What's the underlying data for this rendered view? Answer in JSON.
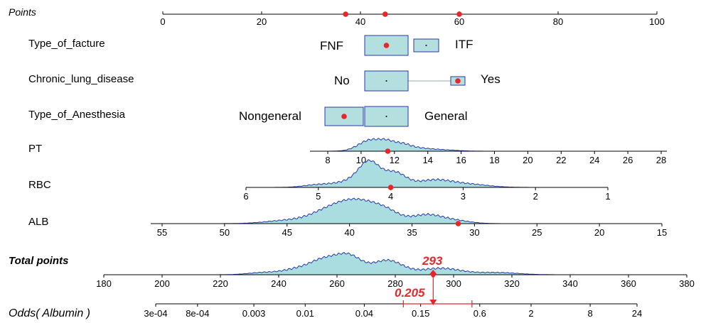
{
  "chart_data": {
    "type": "nomogram",
    "points_axis": {
      "label": "Points",
      "ticks": [
        0,
        20,
        40,
        60,
        80,
        100
      ],
      "selected": [
        37,
        45,
        60
      ]
    },
    "categorical": [
      {
        "name": "Type_of_facture",
        "levels": [
          {
            "label": "FNF",
            "points": 45
          },
          {
            "label": "ITF",
            "points": 53
          }
        ],
        "selected": "FNF",
        "selected_points": 45
      },
      {
        "name": "Chronic_lung_disease",
        "levels": [
          {
            "label": "No",
            "points": 45
          },
          {
            "label": "Yes",
            "points": 60
          }
        ],
        "selected": "Yes",
        "selected_points": 60
      },
      {
        "name": "Type_of_Anesthesia",
        "levels": [
          {
            "label": "Nongeneral",
            "points": 37
          },
          {
            "label": "General",
            "points": 45
          }
        ],
        "selected": "Nongeneral",
        "selected_points": 37
      }
    ],
    "continuous": [
      {
        "name": "PT",
        "ticks": [
          8,
          10,
          12,
          14,
          16,
          18,
          20,
          22,
          24,
          26,
          28
        ],
        "selected_value": 11.6
      },
      {
        "name": "RBC",
        "ticks": [
          6,
          5,
          4,
          3,
          2,
          1
        ],
        "selected_value": 4
      },
      {
        "name": "ALB",
        "ticks": [
          55,
          50,
          45,
          40,
          35,
          30,
          25,
          20,
          15
        ],
        "selected_value": 31.3
      }
    ],
    "total_points": {
      "label": "Total points",
      "ticks": [
        180,
        200,
        220,
        240,
        260,
        280,
        300,
        320,
        340,
        360,
        380
      ],
      "value": 293,
      "value_label": "293"
    },
    "odds": {
      "label": "Odds( Albumin )",
      "ticks": [
        "3e-04",
        "8e-04",
        "0.003",
        "0.01",
        "0.04",
        "0.15",
        "0.6",
        "2",
        "8",
        "24"
      ],
      "value": 0.205,
      "value_label": "0.205",
      "ci": [
        0.1,
        0.5
      ]
    }
  }
}
